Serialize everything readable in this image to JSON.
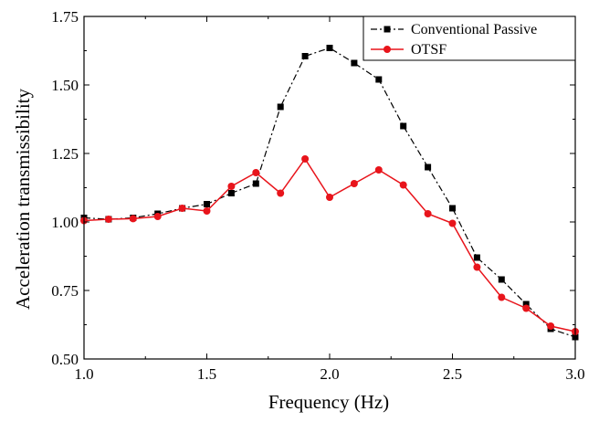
{
  "chart_data": {
    "type": "line",
    "xlabel": "Frequency (Hz)",
    "ylabel": "Acceleration transmissibility",
    "xlim": [
      1.0,
      3.0
    ],
    "ylim": [
      0.5,
      1.75
    ],
    "x_ticks": [
      "1.0",
      "1.5",
      "2.0",
      "2.5",
      "3.0"
    ],
    "y_ticks": [
      "0.50",
      "0.75",
      "1.00",
      "1.25",
      "1.50",
      "1.75"
    ],
    "x_tick_values": [
      1.0,
      1.5,
      2.0,
      2.5,
      3.0
    ],
    "y_tick_values": [
      0.5,
      0.75,
      1.0,
      1.25,
      1.5,
      1.75
    ],
    "grid": false,
    "legend_position": "top-right",
    "x": [
      1.0,
      1.1,
      1.2,
      1.3,
      1.4,
      1.5,
      1.6,
      1.7,
      1.8,
      1.9,
      2.0,
      2.1,
      2.2,
      2.3,
      2.4,
      2.5,
      2.6,
      2.7,
      2.8,
      2.9,
      3.0
    ],
    "series": [
      {
        "name": "Conventional Passive",
        "color": "#000000",
        "marker": "square",
        "line_style": "dash-dot",
        "values": [
          1.015,
          1.01,
          1.015,
          1.03,
          1.05,
          1.065,
          1.105,
          1.14,
          1.42,
          1.605,
          1.635,
          1.58,
          1.52,
          1.35,
          1.2,
          1.05,
          0.87,
          0.79,
          0.7,
          0.61,
          0.58
        ]
      },
      {
        "name": "OTSF",
        "color": "#e8141b",
        "marker": "circle",
        "line_style": "solid",
        "values": [
          1.005,
          1.01,
          1.012,
          1.02,
          1.05,
          1.04,
          1.13,
          1.18,
          1.105,
          1.23,
          1.09,
          1.14,
          1.19,
          1.135,
          1.03,
          0.995,
          0.835,
          0.725,
          0.685,
          0.62,
          0.6
        ]
      }
    ]
  }
}
